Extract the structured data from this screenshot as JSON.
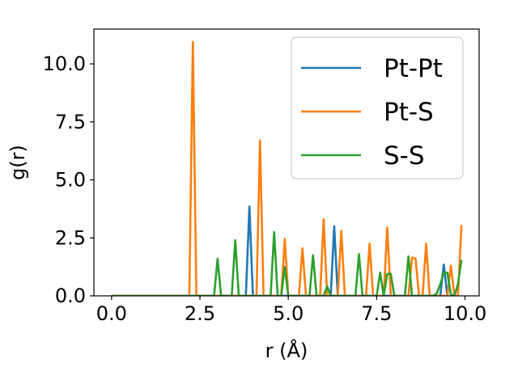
{
  "chart_data": {
    "type": "line",
    "title": "",
    "xlabel": "r (Å)",
    "ylabel": "g(r)",
    "xlim": [
      -0.5,
      10.4
    ],
    "ylim": [
      0,
      11.5
    ],
    "xticks": [
      0.0,
      2.5,
      5.0,
      7.5,
      10.0
    ],
    "xtick_labels": [
      "0.0",
      "2.5",
      "5.0",
      "7.5",
      "10.0"
    ],
    "yticks": [
      0.0,
      2.5,
      5.0,
      7.5,
      10.0
    ],
    "ytick_labels": [
      "0.0",
      "2.5",
      "5.0",
      "7.5",
      "10.0"
    ],
    "grid": false,
    "legend_position": "top-right",
    "series": [
      {
        "name": "Pt-Pt",
        "color": "#1f77b4",
        "x": [
          0.0,
          3.8,
          3.9,
          4.0,
          6.2,
          6.3,
          6.4,
          9.3,
          9.4,
          9.5
        ],
        "y": [
          0.0,
          0.0,
          3.85,
          0.0,
          0.0,
          3.0,
          0.0,
          0.0,
          1.35,
          0.0
        ]
      },
      {
        "name": "Pt-S",
        "color": "#ff7f0e",
        "x": [
          0.0,
          2.2,
          2.3,
          2.4,
          4.1,
          4.2,
          4.3,
          4.8,
          4.9,
          5.0,
          5.3,
          5.4,
          5.5,
          5.9,
          6.0,
          6.1,
          6.4,
          6.5,
          6.6,
          7.2,
          7.3,
          7.4,
          7.7,
          7.8,
          7.9,
          8.4,
          8.5,
          8.6,
          8.7,
          8.8,
          8.9,
          9.0,
          9.5,
          9.6,
          9.7,
          9.8,
          9.9
        ],
        "y": [
          0.0,
          0.0,
          10.95,
          0.0,
          0.0,
          6.7,
          0.0,
          0.0,
          2.45,
          0.0,
          0.0,
          2.05,
          0.0,
          0.0,
          3.3,
          0.0,
          0.0,
          2.8,
          0.0,
          0.0,
          2.25,
          0.0,
          0.0,
          2.95,
          0.0,
          0.0,
          1.65,
          1.6,
          0.0,
          0.0,
          2.25,
          0.0,
          0.0,
          1.3,
          0.0,
          0.0,
          3.05
        ]
      },
      {
        "name": "S-S",
        "color": "#2ca02c",
        "x": [
          0.0,
          2.9,
          3.0,
          3.1,
          3.4,
          3.5,
          3.6,
          4.5,
          4.6,
          4.7,
          4.8,
          4.9,
          5.0,
          5.6,
          5.7,
          5.8,
          6.0,
          6.1,
          6.2,
          6.9,
          7.0,
          7.1,
          7.5,
          7.6,
          7.7,
          7.8,
          7.9,
          8.0,
          8.3,
          8.4,
          8.5,
          9.1,
          9.2,
          9.3,
          9.4,
          9.5,
          9.6,
          9.7,
          9.8,
          9.9
        ],
        "y": [
          0.0,
          0.0,
          1.6,
          0.0,
          0.0,
          2.4,
          0.0,
          0.0,
          2.75,
          0.0,
          0.0,
          1.25,
          0.0,
          0.0,
          1.75,
          0.0,
          0.0,
          0.4,
          0.0,
          0.0,
          1.8,
          0.0,
          0.0,
          1.0,
          0.0,
          0.95,
          0.95,
          0.0,
          0.0,
          1.7,
          0.0,
          0.0,
          0.1,
          0.5,
          1.0,
          1.0,
          0.05,
          0.0,
          0.5,
          1.55
        ]
      }
    ]
  }
}
